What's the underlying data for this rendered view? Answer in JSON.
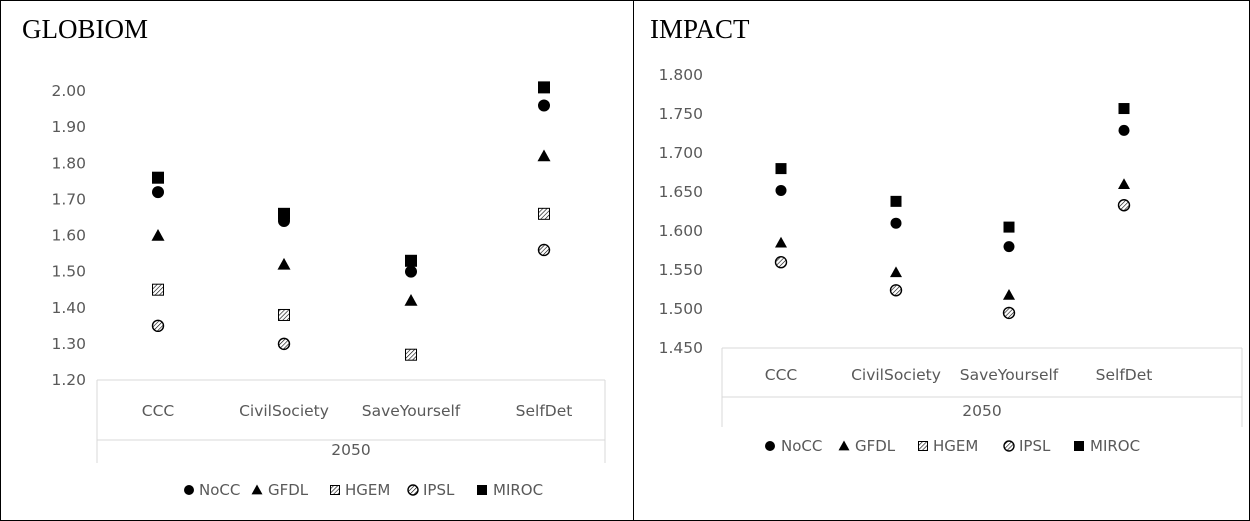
{
  "charts": [
    {
      "id": "globiom",
      "title": "GLOBIOM",
      "chart_data": {
        "type": "scatter",
        "title": "GLOBIOM",
        "categories": [
          "CCC",
          "CivilSociety",
          "SaveYourself",
          "SelfDet"
        ],
        "group_label": "2050",
        "yticks": [
          "1.20",
          "1.30",
          "1.40",
          "1.50",
          "1.60",
          "1.70",
          "1.80",
          "1.90",
          "2.00"
        ],
        "ylim": [
          1.2,
          2.05
        ],
        "grid": false,
        "legend_position": "bottom",
        "series": [
          {
            "name": "NoCC",
            "marker": "circle",
            "values": [
              1.72,
              1.64,
              1.5,
              1.96
            ]
          },
          {
            "name": "GFDL",
            "marker": "triangle",
            "values": [
              1.6,
              1.52,
              1.42,
              1.82
            ]
          },
          {
            "name": "HGEM",
            "marker": "hatched-square",
            "values": [
              1.45,
              1.38,
              1.27,
              1.66
            ]
          },
          {
            "name": "IPSL",
            "marker": "hatched-circle",
            "values": [
              1.35,
              1.3,
              null,
              1.56
            ]
          },
          {
            "name": "MIROC",
            "marker": "square",
            "values": [
              1.76,
              1.66,
              1.53,
              2.01
            ]
          }
        ]
      }
    },
    {
      "id": "impact",
      "title": "IMPACT",
      "chart_data": {
        "type": "scatter",
        "title": "IMPACT",
        "categories": [
          "CCC",
          "CivilSociety",
          "SaveYourself",
          "SelfDet"
        ],
        "group_label": "2050",
        "yticks": [
          "1.450",
          "1.500",
          "1.550",
          "1.600",
          "1.650",
          "1.700",
          "1.750",
          "1.800"
        ],
        "ylim": [
          1.45,
          1.8
        ],
        "grid": false,
        "legend_position": "bottom",
        "series": [
          {
            "name": "NoCC",
            "marker": "circle",
            "values": [
              1.652,
              1.61,
              1.58,
              1.729
            ]
          },
          {
            "name": "GFDL",
            "marker": "triangle",
            "values": [
              1.585,
              1.547,
              1.518,
              1.66
            ]
          },
          {
            "name": "HGEM",
            "marker": "hatched-square",
            "values": [
              null,
              null,
              null,
              null
            ]
          },
          {
            "name": "IPSL",
            "marker": "hatched-circle",
            "values": [
              1.56,
              1.524,
              1.495,
              1.633
            ]
          },
          {
            "name": "MIROC",
            "marker": "square",
            "values": [
              1.68,
              1.638,
              1.605,
              1.757
            ]
          }
        ]
      }
    }
  ]
}
